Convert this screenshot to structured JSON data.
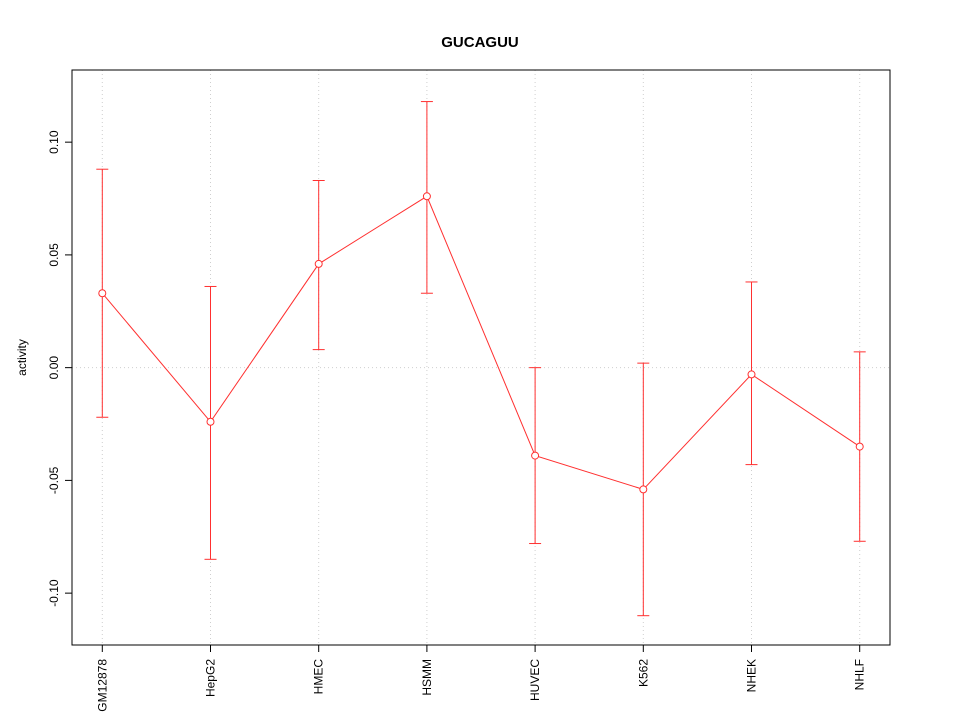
{
  "chart_data": {
    "type": "line",
    "title": "GUCAGUU",
    "xlabel": "",
    "ylabel": "activity",
    "categories": [
      "GM12878",
      "HepG2",
      "HMEC",
      "HSMM",
      "HUVEC",
      "K562",
      "NHEK",
      "NHLF"
    ],
    "series": [
      {
        "name": "activity",
        "values": [
          0.033,
          -0.024,
          0.046,
          0.076,
          -0.039,
          -0.054,
          -0.003,
          -0.035
        ],
        "lower": [
          -0.022,
          -0.085,
          0.008,
          0.033,
          -0.078,
          -0.11,
          -0.043,
          -0.077
        ],
        "upper": [
          0.088,
          0.036,
          0.083,
          0.118,
          0.0,
          0.002,
          0.038,
          0.007
        ]
      }
    ],
    "ylim": [
      -0.123,
      0.132
    ],
    "yticks": [
      -0.1,
      -0.05,
      0.0,
      0.05,
      0.1
    ],
    "ytick_labels": [
      "-0.10",
      "-0.05",
      "0.00",
      "0.05",
      "0.10"
    ],
    "grid": "dotted vertical line at each category; dotted horizontal line at y=0",
    "legend": "none",
    "marker": "open-circle",
    "line_color": "#ff3030",
    "grid_color": "#cfcfcf",
    "axis_color": "#000000",
    "text_color": "#000000"
  }
}
